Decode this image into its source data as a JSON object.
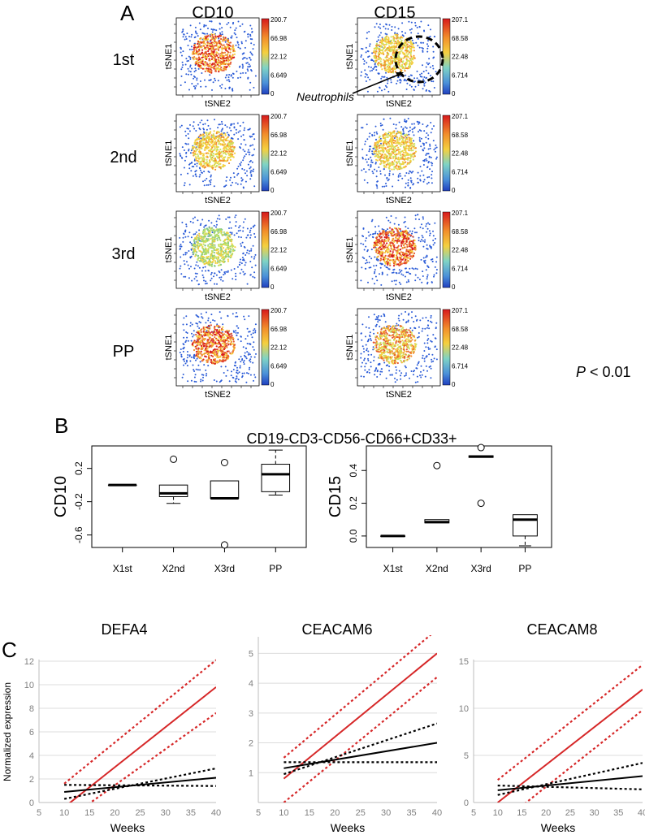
{
  "panel_labels": {
    "a": "A",
    "b": "B",
    "c": "C"
  },
  "panel_a": {
    "columns": [
      "CD10",
      "CD15"
    ],
    "rows": [
      "1st",
      "2nd",
      "3rd",
      "PP"
    ],
    "xlabel": "tSNE2",
    "ylabel": "tSNE1",
    "colorbar_ticks": [
      [
        "200.7",
        "66.98",
        "22.12",
        "6.649",
        "0"
      ],
      [
        "207.1",
        "68.58",
        "22.48",
        "6.714",
        "0"
      ]
    ],
    "annotation": "Neutrophils",
    "colors": {
      "high": "#d7191c",
      "mid": "#f4d03f",
      "low": "#2c7bb6",
      "dot": "#2a5bd7"
    }
  },
  "chart_data": [
    {
      "type": "box",
      "title": "CD19-CD3-CD56-CD66+CD33+",
      "ylabel": "CD10",
      "categories": [
        "X1st",
        "X2nd",
        "X3rd",
        "PP"
      ],
      "ylim": [
        -0.75,
        0.47
      ],
      "yticks": [
        "-0.6",
        "-0.2",
        "0.2"
      ],
      "boxes": [
        {
          "min": 0.0,
          "q1": 0.0,
          "median": 0.0,
          "q3": 0.0,
          "max": 0.0,
          "outliers": []
        },
        {
          "min": -0.22,
          "q1": -0.14,
          "median": -0.1,
          "q3": 0.0,
          "max": 0.0,
          "outliers": [
            0.31
          ]
        },
        {
          "min": -0.16,
          "q1": -0.16,
          "median": -0.16,
          "q3": 0.05,
          "max": 0.05,
          "outliers": [
            0.27,
            -0.72
          ]
        },
        {
          "min": -0.12,
          "q1": -0.08,
          "median": 0.13,
          "q3": 0.25,
          "max": 0.42,
          "outliers": []
        }
      ]
    },
    {
      "type": "box",
      "ylabel": "CD15",
      "categories": [
        "X1st",
        "X2nd",
        "X3rd",
        "PP"
      ],
      "ylim": [
        -0.07,
        0.55
      ],
      "yticks": [
        "0.0",
        "0.2",
        "0.4"
      ],
      "boxes": [
        {
          "min": 0.0,
          "q1": 0.0,
          "median": 0.0,
          "q3": 0.0,
          "max": 0.0,
          "outliers": []
        },
        {
          "min": 0.08,
          "q1": 0.08,
          "median": 0.085,
          "q3": 0.1,
          "max": 0.1,
          "outliers": [
            0.43
          ]
        },
        {
          "min": 0.48,
          "q1": 0.48,
          "median": 0.485,
          "q3": 0.49,
          "max": 0.49,
          "outliers": [
            0.54,
            0.2
          ]
        },
        {
          "min": -0.06,
          "q1": 0.0,
          "median": 0.1,
          "q3": 0.13,
          "max": 0.13,
          "outliers": []
        }
      ]
    },
    {
      "type": "line",
      "title": "DEFA4",
      "xlabel": "Weeks",
      "ylabel": "Normalized expression",
      "xlim": [
        5,
        40
      ],
      "ylim": [
        0,
        12
      ],
      "xticks": [
        5,
        10,
        15,
        20,
        25,
        30,
        35,
        40
      ],
      "yticks": [
        0,
        2,
        4,
        6,
        8,
        10,
        12
      ],
      "series": [
        {
          "color": "#d62728",
          "style": "solid",
          "x": [
            10,
            40
          ],
          "y": [
            -0.4,
            9.8
          ]
        },
        {
          "color": "#d62728",
          "style": "dotted",
          "x": [
            10,
            40
          ],
          "y": [
            1.6,
            12.1
          ]
        },
        {
          "color": "#d62728",
          "style": "dotted",
          "x": [
            10,
            40
          ],
          "y": [
            -1.6,
            7.6
          ]
        },
        {
          "color": "#000000",
          "style": "solid",
          "x": [
            10,
            40
          ],
          "y": [
            0.9,
            2.1
          ]
        },
        {
          "color": "#000000",
          "style": "dotted",
          "x": [
            10,
            40
          ],
          "y": [
            0.3,
            2.9
          ]
        },
        {
          "color": "#000000",
          "style": "dotted",
          "x": [
            10,
            40
          ],
          "y": [
            1.5,
            1.4
          ]
        }
      ]
    },
    {
      "type": "line",
      "title": "CEACAM6",
      "xlabel": "Weeks",
      "xlim": [
        5,
        40
      ],
      "ylim": [
        0,
        5.5
      ],
      "xticks": [
        5,
        10,
        15,
        20,
        25,
        30,
        35,
        40
      ],
      "yticks": [
        1,
        2,
        3,
        4,
        5
      ],
      "series": [
        {
          "color": "#d62728",
          "style": "solid",
          "x": [
            10,
            40
          ],
          "y": [
            0.8,
            5.0
          ]
        },
        {
          "color": "#d62728",
          "style": "dotted",
          "x": [
            10,
            40
          ],
          "y": [
            1.5,
            5.8
          ]
        },
        {
          "color": "#d62728",
          "style": "dotted",
          "x": [
            10,
            40
          ],
          "y": [
            0.0,
            4.2
          ]
        },
        {
          "color": "#000000",
          "style": "solid",
          "x": [
            10,
            40
          ],
          "y": [
            1.15,
            2.0
          ]
        },
        {
          "color": "#000000",
          "style": "dotted",
          "x": [
            10,
            40
          ],
          "y": [
            0.95,
            2.65
          ]
        },
        {
          "color": "#000000",
          "style": "dotted",
          "x": [
            10,
            40
          ],
          "y": [
            1.35,
            1.35
          ]
        }
      ]
    },
    {
      "type": "line",
      "title": "CEACAM8",
      "xlabel": "Weeks",
      "xlim": [
        5,
        40
      ],
      "ylim": [
        0,
        15
      ],
      "xticks": [
        5,
        10,
        15,
        20,
        25,
        30,
        35,
        40
      ],
      "yticks": [
        0,
        5,
        10,
        15
      ],
      "series": [
        {
          "color": "#d62728",
          "style": "solid",
          "x": [
            10,
            40
          ],
          "y": [
            0.0,
            12.0
          ]
        },
        {
          "color": "#d62728",
          "style": "dotted",
          "x": [
            10,
            40
          ],
          "y": [
            2.4,
            14.6
          ]
        },
        {
          "color": "#d62728",
          "style": "dotted",
          "x": [
            10,
            40
          ],
          "y": [
            -2.4,
            9.8
          ]
        },
        {
          "color": "#000000",
          "style": "solid",
          "x": [
            10,
            40
          ],
          "y": [
            1.3,
            2.8
          ]
        },
        {
          "color": "#000000",
          "style": "dotted",
          "x": [
            10,
            40
          ],
          "y": [
            0.8,
            4.2
          ]
        },
        {
          "color": "#000000",
          "style": "dotted",
          "x": [
            10,
            40
          ],
          "y": [
            1.8,
            1.4
          ]
        }
      ]
    }
  ],
  "pvalue": {
    "symbol": "P",
    "text": " < 0.01"
  }
}
